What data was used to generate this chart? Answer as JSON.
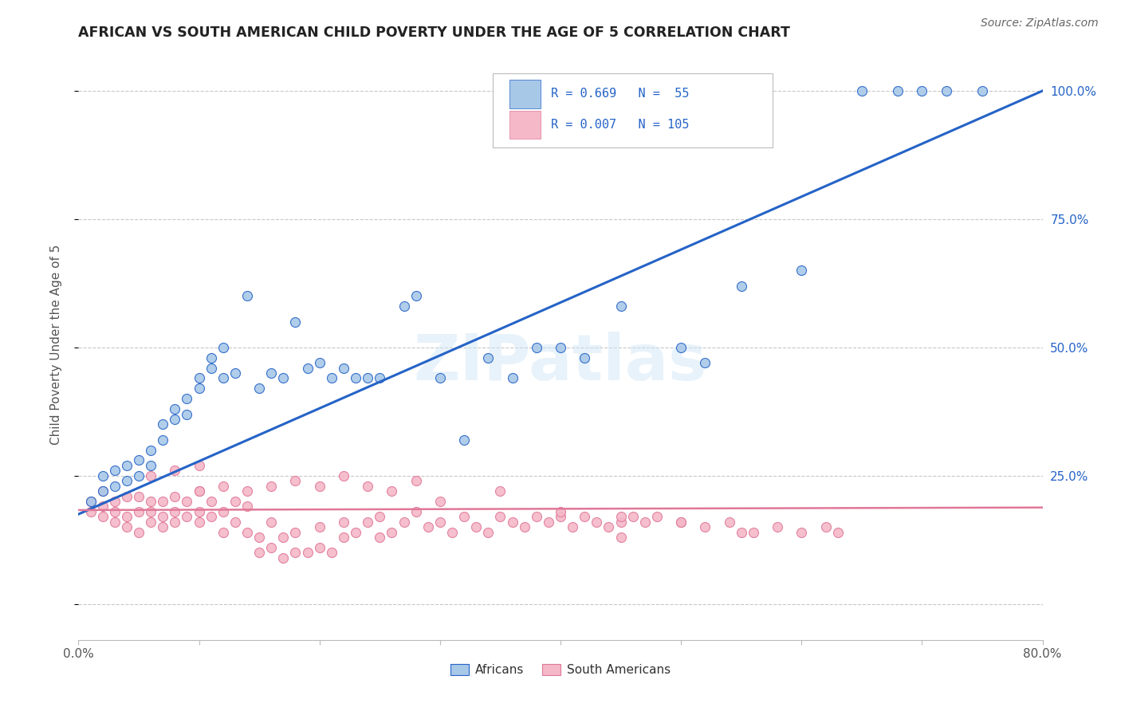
{
  "title": "AFRICAN VS SOUTH AMERICAN CHILD POVERTY UNDER THE AGE OF 5 CORRELATION CHART",
  "source": "Source: ZipAtlas.com",
  "ylabel": "Child Poverty Under the Age of 5",
  "xlim": [
    0.0,
    0.8
  ],
  "ylim": [
    -0.07,
    1.08
  ],
  "watermark": "ZIPatlas",
  "african_color": "#a8c8e8",
  "south_american_color": "#f4b8c8",
  "african_line_color": "#2563c7",
  "south_american_line_color": "#e07898",
  "grid_color": "#c8c8c8",
  "title_color": "#222222",
  "source_color": "#666666",
  "af_line_x0": 0.0,
  "af_line_y0": 0.175,
  "af_line_x1": 0.8,
  "af_line_y1": 1.0,
  "sa_line_x0": 0.0,
  "sa_line_y0": 0.183,
  "sa_line_x1": 0.8,
  "sa_line_y1": 0.188,
  "africans_x": [
    0.01,
    0.02,
    0.02,
    0.03,
    0.03,
    0.04,
    0.04,
    0.05,
    0.05,
    0.06,
    0.06,
    0.07,
    0.07,
    0.08,
    0.08,
    0.09,
    0.09,
    0.1,
    0.1,
    0.11,
    0.11,
    0.12,
    0.12,
    0.13,
    0.14,
    0.15,
    0.16,
    0.17,
    0.18,
    0.19,
    0.2,
    0.21,
    0.22,
    0.23,
    0.24,
    0.25,
    0.27,
    0.28,
    0.3,
    0.32,
    0.34,
    0.36,
    0.38,
    0.4,
    0.42,
    0.45,
    0.5,
    0.52,
    0.55,
    0.6,
    0.65,
    0.68,
    0.7,
    0.72,
    0.75
  ],
  "africans_y": [
    0.2,
    0.22,
    0.25,
    0.23,
    0.26,
    0.24,
    0.27,
    0.25,
    0.28,
    0.27,
    0.3,
    0.32,
    0.35,
    0.36,
    0.38,
    0.37,
    0.4,
    0.42,
    0.44,
    0.46,
    0.48,
    0.44,
    0.5,
    0.45,
    0.6,
    0.42,
    0.45,
    0.44,
    0.55,
    0.46,
    0.47,
    0.44,
    0.46,
    0.44,
    0.44,
    0.44,
    0.58,
    0.6,
    0.44,
    0.32,
    0.48,
    0.44,
    0.5,
    0.5,
    0.48,
    0.58,
    0.5,
    0.47,
    0.62,
    0.65,
    1.0,
    1.0,
    1.0,
    1.0,
    1.0
  ],
  "south_americans_x": [
    0.01,
    0.01,
    0.02,
    0.02,
    0.02,
    0.03,
    0.03,
    0.03,
    0.04,
    0.04,
    0.04,
    0.05,
    0.05,
    0.05,
    0.06,
    0.06,
    0.06,
    0.07,
    0.07,
    0.07,
    0.08,
    0.08,
    0.08,
    0.09,
    0.09,
    0.1,
    0.1,
    0.1,
    0.11,
    0.11,
    0.12,
    0.12,
    0.13,
    0.13,
    0.14,
    0.14,
    0.15,
    0.15,
    0.16,
    0.16,
    0.17,
    0.17,
    0.18,
    0.18,
    0.19,
    0.2,
    0.2,
    0.21,
    0.22,
    0.22,
    0.23,
    0.24,
    0.25,
    0.25,
    0.26,
    0.27,
    0.28,
    0.29,
    0.3,
    0.31,
    0.32,
    0.33,
    0.34,
    0.35,
    0.36,
    0.37,
    0.38,
    0.39,
    0.4,
    0.41,
    0.42,
    0.43,
    0.44,
    0.45,
    0.46,
    0.47,
    0.48,
    0.5,
    0.52,
    0.54,
    0.56,
    0.58,
    0.6,
    0.62,
    0.63,
    0.1,
    0.12,
    0.14,
    0.16,
    0.18,
    0.2,
    0.22,
    0.24,
    0.26,
    0.28,
    0.3,
    0.35,
    0.4,
    0.45,
    0.5,
    0.06,
    0.08,
    0.1,
    0.45,
    0.55
  ],
  "south_americans_y": [
    0.18,
    0.2,
    0.17,
    0.19,
    0.22,
    0.16,
    0.18,
    0.2,
    0.15,
    0.17,
    0.21,
    0.14,
    0.18,
    0.21,
    0.16,
    0.18,
    0.2,
    0.15,
    0.17,
    0.2,
    0.16,
    0.18,
    0.21,
    0.17,
    0.2,
    0.16,
    0.18,
    0.22,
    0.17,
    0.2,
    0.14,
    0.18,
    0.16,
    0.2,
    0.14,
    0.19,
    0.1,
    0.13,
    0.11,
    0.16,
    0.09,
    0.13,
    0.1,
    0.14,
    0.1,
    0.11,
    0.15,
    0.1,
    0.13,
    0.16,
    0.14,
    0.16,
    0.13,
    0.17,
    0.14,
    0.16,
    0.18,
    0.15,
    0.16,
    0.14,
    0.17,
    0.15,
    0.14,
    0.17,
    0.16,
    0.15,
    0.17,
    0.16,
    0.17,
    0.15,
    0.17,
    0.16,
    0.15,
    0.16,
    0.17,
    0.16,
    0.17,
    0.16,
    0.15,
    0.16,
    0.14,
    0.15,
    0.14,
    0.15,
    0.14,
    0.22,
    0.23,
    0.22,
    0.23,
    0.24,
    0.23,
    0.25,
    0.23,
    0.22,
    0.24,
    0.2,
    0.22,
    0.18,
    0.17,
    0.16,
    0.25,
    0.26,
    0.27,
    0.13,
    0.14
  ]
}
